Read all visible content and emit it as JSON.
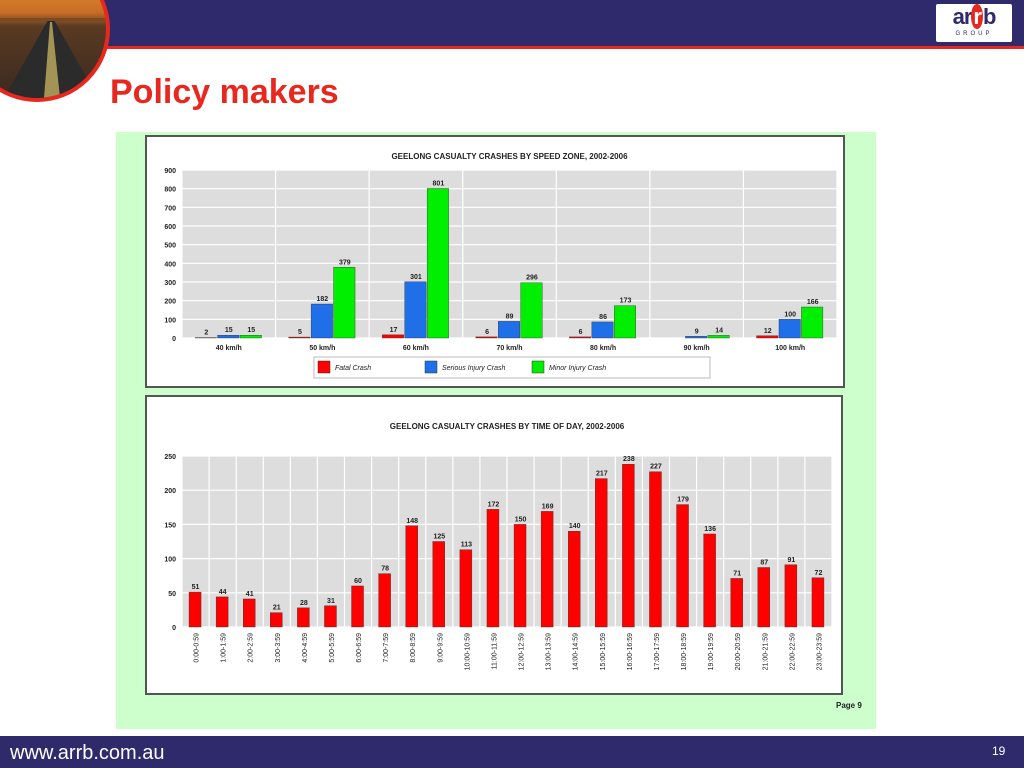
{
  "slide": {
    "title": "Policy makers",
    "url": "www.arrb.com.au",
    "slide_number": "19",
    "page_label": "Page 9",
    "logo": {
      "name": "arrb",
      "sub": "GROUP"
    },
    "colors": {
      "bar": "#2e2a6b",
      "accent": "#e8281e",
      "panel": "#ccffcc"
    }
  },
  "chart_data": [
    {
      "type": "bar",
      "title": "GEELONG CASUALTY CRASHES BY SPEED ZONE,  2002-2006",
      "categories": [
        "40 km/h",
        "50 km/h",
        "60 km/h",
        "70 km/h",
        "80 km/h",
        "90 km/h",
        "100 km/h"
      ],
      "series": [
        {
          "name": "Fatal Crash",
          "color": "#ff0000",
          "values": [
            2,
            5,
            17,
            6,
            6,
            null,
            12
          ]
        },
        {
          "name": "Serious Injury Crash",
          "color": "#1e6fe8",
          "values": [
            15,
            182,
            301,
            89,
            86,
            9,
            100
          ]
        },
        {
          "name": "Minor Injury Crash",
          "color": "#00ee00",
          "values": [
            15,
            379,
            801,
            296,
            173,
            14,
            166
          ]
        }
      ],
      "ylim": [
        0,
        900
      ],
      "yticks": [
        0,
        100,
        200,
        300,
        400,
        500,
        600,
        700,
        800,
        900
      ],
      "grid": true,
      "legend": "bottom"
    },
    {
      "type": "bar",
      "title": "GEELONG CASUALTY CRASHES BY TIME OF DAY,  2002-2006",
      "categories": [
        "0:00-0:59",
        "1:00-1:59",
        "2:00-2:59",
        "3:00-3:59",
        "4:00-4:59",
        "5:00-5:59",
        "6:00-6:59",
        "7:00-7:59",
        "8:00-8:59",
        "9:00-9:59",
        "10:00-10:59",
        "11:00-11:59",
        "12:00-12:59",
        "13:00-13:59",
        "14:00-14:59",
        "15:00-15:59",
        "16:00-16:59",
        "17:00-17:59",
        "18:00-18:59",
        "19:00-19:59",
        "20:00-20:59",
        "21:00-21:59",
        "22:00-22:59",
        "23:00-23:59"
      ],
      "series": [
        {
          "color": "#ff0000",
          "values": [
            51,
            44,
            41,
            21,
            28,
            31,
            60,
            78,
            148,
            125,
            113,
            172,
            150,
            169,
            140,
            217,
            238,
            227,
            179,
            136,
            71,
            87,
            91,
            72
          ]
        }
      ],
      "ylim": [
        0,
        250
      ],
      "yticks": [
        0,
        50,
        100,
        150,
        200,
        250
      ],
      "grid": true
    }
  ]
}
